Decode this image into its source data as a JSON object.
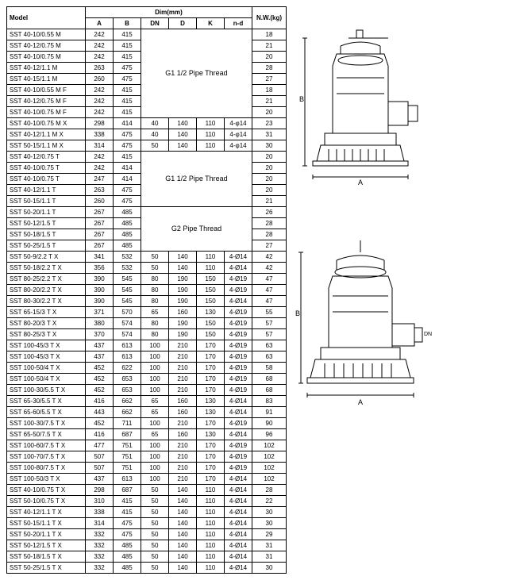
{
  "headers": {
    "model": "Model",
    "dim": "Dim(mm)",
    "nw": "N.W.(kg)",
    "cols": [
      "A",
      "B",
      "DN",
      "D",
      "K",
      "n-d"
    ]
  },
  "merge1": "G1 1/2 Pipe Thread",
  "merge2": "G1 1/2 Pipe Thread",
  "merge3": "G2 Pipe Thread",
  "rows_g1": [
    {
      "m": "SST 40-10/0.55 M",
      "a": "242",
      "b": "415",
      "nw": "18"
    },
    {
      "m": "SST 40-12/0.75 M",
      "a": "242",
      "b": "415",
      "nw": "21"
    },
    {
      "m": "SST 40-10/0.75 M",
      "a": "242",
      "b": "415",
      "nw": "20"
    },
    {
      "m": "SST 40-12/1.1 M",
      "a": "263",
      "b": "475",
      "nw": "28"
    },
    {
      "m": "SST 40-15/1.1 M",
      "a": "260",
      "b": "475",
      "nw": "27"
    },
    {
      "m": "SST 40-10/0.55 M F",
      "a": "242",
      "b": "415",
      "nw": "18"
    },
    {
      "m": "SST 40-12/0.75 M F",
      "a": "242",
      "b": "415",
      "nw": "21"
    },
    {
      "m": "SST 40-10/0.75 M F",
      "a": "242",
      "b": "415",
      "nw": "20"
    }
  ],
  "rows_x": [
    {
      "m": "SST 40-10/0.75 M X",
      "a": "298",
      "b": "414",
      "dn": "40",
      "d": "140",
      "k": "110",
      "nd": "4-φ14",
      "nw": "23"
    },
    {
      "m": "SST 40-12/1.1 M X",
      "a": "338",
      "b": "475",
      "dn": "40",
      "d": "140",
      "k": "110",
      "nd": "4-φ14",
      "nw": "31"
    },
    {
      "m": "SST 50-15/1.1 M X",
      "a": "314",
      "b": "475",
      "dn": "50",
      "d": "140",
      "k": "110",
      "nd": "4-φ14",
      "nw": "30"
    }
  ],
  "rows_g2a": [
    {
      "m": "SST 40-12/0.75 T",
      "a": "242",
      "b": "415",
      "nw": "20"
    },
    {
      "m": "SST 40-10/0.75 T",
      "a": "242",
      "b": "414",
      "nw": "20"
    },
    {
      "m": "SST 40-10/0.75 T",
      "a": "247",
      "b": "414",
      "nw": "20"
    },
    {
      "m": "SST 40-12/1.1 T",
      "a": "263",
      "b": "475",
      "nw": "20"
    },
    {
      "m": "SST 50-15/1.1 T",
      "a": "260",
      "b": "475",
      "nw": "21"
    }
  ],
  "rows_g2b": [
    {
      "m": "SST 50-20/1.1 T",
      "a": "267",
      "b": "485",
      "nw": "26"
    },
    {
      "m": "SST 50-12/1.5 T",
      "a": "267",
      "b": "485",
      "nw": "28"
    },
    {
      "m": "SST 50-18/1.5 T",
      "a": "267",
      "b": "485",
      "nw": "28"
    },
    {
      "m": "SST 50-25/1.5 T",
      "a": "267",
      "b": "485",
      "nw": "27"
    }
  ],
  "rows_full": [
    {
      "m": "SST 50-9/2.2 T X",
      "a": "341",
      "b": "532",
      "dn": "50",
      "d": "140",
      "k": "110",
      "nd": "4-Ø14",
      "nw": "42"
    },
    {
      "m": "SST 50-18/2.2 T X",
      "a": "356",
      "b": "532",
      "dn": "50",
      "d": "140",
      "k": "110",
      "nd": "4-Ø14",
      "nw": "42"
    },
    {
      "m": "SST 80-25/2.2 T X",
      "a": "390",
      "b": "545",
      "dn": "80",
      "d": "190",
      "k": "150",
      "nd": "4-Ø19",
      "nw": "47"
    },
    {
      "m": "SST 80-20/2.2 T X",
      "a": "390",
      "b": "545",
      "dn": "80",
      "d": "190",
      "k": "150",
      "nd": "4-Ø19",
      "nw": "47"
    },
    {
      "m": "SST 80-30/2.2 T X",
      "a": "390",
      "b": "545",
      "dn": "80",
      "d": "190",
      "k": "150",
      "nd": "4-Ø14",
      "nw": "47"
    },
    {
      "m": "SST 65-15/3 T X",
      "a": "371",
      "b": "570",
      "dn": "65",
      "d": "160",
      "k": "130",
      "nd": "4-Ø19",
      "nw": "55"
    },
    {
      "m": "SST 80-20/3 T X",
      "a": "380",
      "b": "574",
      "dn": "80",
      "d": "190",
      "k": "150",
      "nd": "4-Ø19",
      "nw": "57"
    },
    {
      "m": "SST 80-25/3 T X",
      "a": "370",
      "b": "574",
      "dn": "80",
      "d": "190",
      "k": "150",
      "nd": "4-Ø19",
      "nw": "57"
    },
    {
      "m": "SST 100-45/3 T X",
      "a": "437",
      "b": "613",
      "dn": "100",
      "d": "210",
      "k": "170",
      "nd": "4-Ø19",
      "nw": "63"
    },
    {
      "m": "SST 100-45/3 T X",
      "a": "437",
      "b": "613",
      "dn": "100",
      "d": "210",
      "k": "170",
      "nd": "4-Ø19",
      "nw": "63"
    },
    {
      "m": "SST 100-50/4 T X",
      "a": "452",
      "b": "622",
      "dn": "100",
      "d": "210",
      "k": "170",
      "nd": "4-Ø19",
      "nw": "58"
    },
    {
      "m": "SST 100-50/4 T X",
      "a": "452",
      "b": "653",
      "dn": "100",
      "d": "210",
      "k": "170",
      "nd": "4-Ø19",
      "nw": "68"
    },
    {
      "m": "SST 100-30/5.5 T X",
      "a": "452",
      "b": "653",
      "dn": "100",
      "d": "210",
      "k": "170",
      "nd": "4-Ø19",
      "nw": "68"
    },
    {
      "m": "SST 65-30/5.5 T X",
      "a": "416",
      "b": "662",
      "dn": "65",
      "d": "160",
      "k": "130",
      "nd": "4-Ø14",
      "nw": "83"
    },
    {
      "m": "SST 65-60/5.5 T X",
      "a": "443",
      "b": "662",
      "dn": "65",
      "d": "160",
      "k": "130",
      "nd": "4-Ø14",
      "nw": "91"
    },
    {
      "m": "SST 100-30/7.5 T X",
      "a": "452",
      "b": "711",
      "dn": "100",
      "d": "210",
      "k": "170",
      "nd": "4-Ø19",
      "nw": "90"
    },
    {
      "m": "SST 65-50/7.5 T X",
      "a": "416",
      "b": "687",
      "dn": "65",
      "d": "160",
      "k": "130",
      "nd": "4-Ø14",
      "nw": "96"
    },
    {
      "m": "SST 100-60/7.5 T X",
      "a": "477",
      "b": "751",
      "dn": "100",
      "d": "210",
      "k": "170",
      "nd": "4-Ø19",
      "nw": "102"
    },
    {
      "m": "SST 100-70/7.5 T X",
      "a": "507",
      "b": "751",
      "dn": "100",
      "d": "210",
      "k": "170",
      "nd": "4-Ø19",
      "nw": "102"
    },
    {
      "m": "SST 100-80/7.5 T X",
      "a": "507",
      "b": "751",
      "dn": "100",
      "d": "210",
      "k": "170",
      "nd": "4-Ø19",
      "nw": "102"
    },
    {
      "m": "SST 100-50/3 T X",
      "a": "437",
      "b": "613",
      "dn": "100",
      "d": "210",
      "k": "170",
      "nd": "4-Ø14",
      "nw": "102"
    },
    {
      "m": "SST 40-10/0.75 T X",
      "a": "298",
      "b": "687",
      "dn": "50",
      "d": "140",
      "k": "110",
      "nd": "4-Ø14",
      "nw": "28"
    },
    {
      "m": "SST 50-10/0.75 T X",
      "a": "310",
      "b": "415",
      "dn": "50",
      "d": "140",
      "k": "110",
      "nd": "4-Ø14",
      "nw": "22"
    },
    {
      "m": "SST 40-12/1.1 T X",
      "a": "338",
      "b": "415",
      "dn": "50",
      "d": "140",
      "k": "110",
      "nd": "4-Ø14",
      "nw": "30"
    },
    {
      "m": "SST 50-15/1.1 T X",
      "a": "314",
      "b": "475",
      "dn": "50",
      "d": "140",
      "k": "110",
      "nd": "4-Ø14",
      "nw": "30"
    },
    {
      "m": "SST 50-20/1.1 T X",
      "a": "332",
      "b": "475",
      "dn": "50",
      "d": "140",
      "k": "110",
      "nd": "4-Ø14",
      "nw": "29"
    },
    {
      "m": "SST 50-12/1.5 T X",
      "a": "332",
      "b": "485",
      "dn": "50",
      "d": "140",
      "k": "110",
      "nd": "4-Ø14",
      "nw": "31"
    },
    {
      "m": "SST 50-18/1.5 T X",
      "a": "332",
      "b": "485",
      "dn": "50",
      "d": "140",
      "k": "110",
      "nd": "4-Ø14",
      "nw": "31"
    },
    {
      "m": "SST 50-25/1.5 T X",
      "a": "332",
      "b": "485",
      "dn": "50",
      "d": "140",
      "k": "110",
      "nd": "4-Ø14",
      "nw": "30"
    }
  ],
  "diagram_labels": {
    "a": "A",
    "b": "B",
    "dn": "DN"
  }
}
